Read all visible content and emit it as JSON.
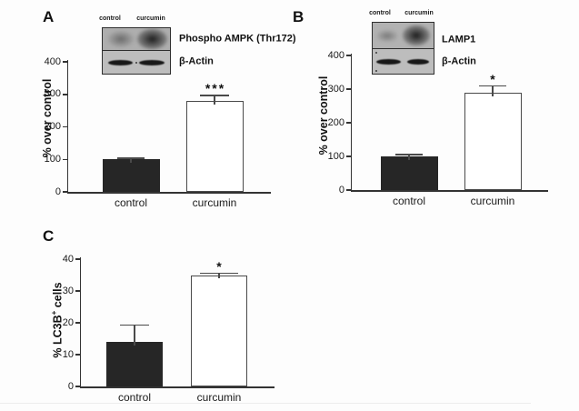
{
  "figure": {
    "background": "#fdfdfd",
    "panels": [
      {
        "letter": "A",
        "blot": {
          "lanes": [
            "control",
            "curcumin"
          ],
          "bands": [
            "Phospho AMPK (Thr172)",
            "β-Actin"
          ]
        }
      },
      {
        "letter": "B",
        "blot": {
          "lanes": [
            "control",
            "curcumin"
          ],
          "bands": [
            "LAMP1",
            "β-Actin"
          ]
        }
      },
      {
        "letter": "C"
      }
    ]
  },
  "chart_data": [
    {
      "type": "bar",
      "panel": "A",
      "categories": [
        "control",
        "curcumin"
      ],
      "values": [
        100,
        280
      ],
      "errors": [
        5,
        18
      ],
      "significance": [
        "",
        "***"
      ],
      "bar_colors": [
        "#262626",
        "#ffffff"
      ],
      "bar_border": "#4a4a4a",
      "ylabel": "% over control",
      "ylim": [
        0,
        400
      ],
      "yticks": [
        0,
        100,
        200,
        300,
        400
      ],
      "grid": false,
      "legend": false
    },
    {
      "type": "bar",
      "panel": "B",
      "categories": [
        "control",
        "curcumin"
      ],
      "values": [
        100,
        290
      ],
      "errors": [
        7,
        21
      ],
      "significance": [
        "",
        "*"
      ],
      "bar_colors": [
        "#262626",
        "#ffffff"
      ],
      "bar_border": "#4a4a4a",
      "ylabel": "% over control",
      "ylim": [
        0,
        400
      ],
      "yticks": [
        0,
        100,
        200,
        300,
        400
      ],
      "grid": false,
      "legend": false
    },
    {
      "type": "bar",
      "panel": "C",
      "categories": [
        "control",
        "curcumin"
      ],
      "values": [
        14,
        35
      ],
      "errors": [
        5.5,
        0.8
      ],
      "significance": [
        "",
        "*"
      ],
      "bar_colors": [
        "#262626",
        "#ffffff"
      ],
      "bar_border": "#4a4a4a",
      "ylabel": "% LC3B+ cells",
      "ylabel_parts": [
        "% LC3B",
        "+",
        " cells"
      ],
      "ylim": [
        0,
        40
      ],
      "yticks": [
        0,
        10,
        20,
        30,
        40
      ],
      "grid": false,
      "legend": false
    }
  ]
}
